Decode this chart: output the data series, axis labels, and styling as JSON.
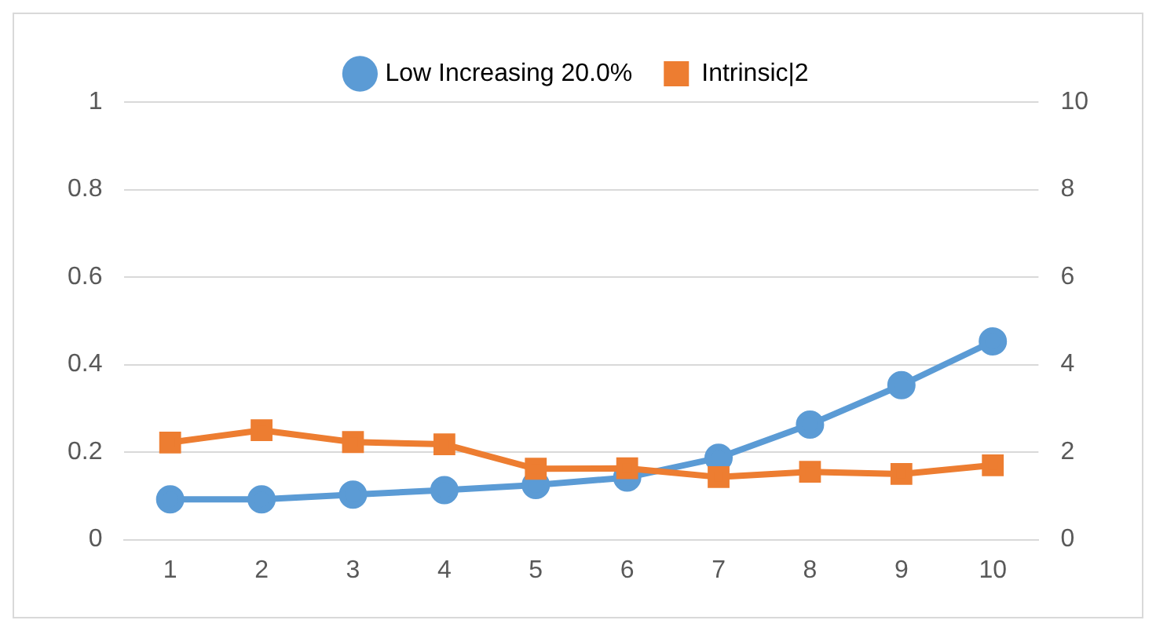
{
  "chart_data": {
    "type": "line",
    "categories": [
      "1",
      "2",
      "3",
      "4",
      "5",
      "6",
      "7",
      "8",
      "9",
      "10"
    ],
    "series": [
      {
        "name": "Low Increasing 20.0%",
        "color": "#5b9bd5",
        "marker": "circle",
        "values": [
          0.092,
          0.092,
          0.103,
          0.113,
          0.125,
          0.142,
          0.187,
          0.263,
          0.353,
          0.453
        ]
      },
      {
        "name": "Intrinsic|2",
        "color": "#ed7d31",
        "marker": "square",
        "axis": "y2",
        "values": [
          2.22,
          2.5,
          2.23,
          2.18,
          1.62,
          1.63,
          1.43,
          1.55,
          1.5,
          1.7
        ]
      }
    ],
    "ylim": [
      0,
      1
    ],
    "yticks": [
      0,
      0.2,
      0.4,
      0.6,
      0.8,
      1
    ],
    "y2lim": [
      0,
      10
    ],
    "y2ticks": [
      0,
      2,
      4,
      6,
      8,
      10
    ],
    "grid": "y",
    "legend": "top"
  }
}
